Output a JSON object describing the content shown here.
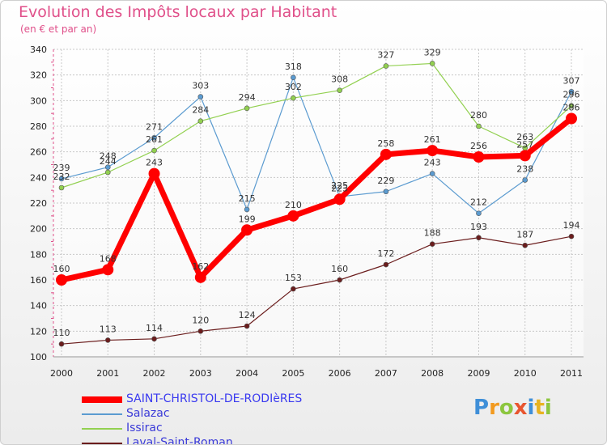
{
  "header": {
    "title": "Evolution des Impôts locaux par Habitant",
    "subtitle": "(en € et par an)"
  },
  "logo": {
    "text": "Proxiti",
    "letters": [
      "P",
      "r",
      "o",
      "x",
      "i",
      "t",
      "i"
    ],
    "colors": [
      "#3f8fd8",
      "#f29a1f",
      "#8cc63f",
      "#e8552f",
      "#3f8fd8",
      "#e8b320",
      "#8cc63f"
    ]
  },
  "chart_data": {
    "type": "line",
    "title": "Evolution des Impôts locaux par Habitant",
    "subtitle": "(en € et par an)",
    "xlabel": "",
    "ylabel": "",
    "x": [
      "2000",
      "2001",
      "2002",
      "2003",
      "2004",
      "2005",
      "2006",
      "2007",
      "2008",
      "2009",
      "2010",
      "2011"
    ],
    "ylim": [
      100,
      340
    ],
    "yticks": [
      100,
      120,
      140,
      160,
      180,
      200,
      220,
      240,
      260,
      280,
      300,
      320,
      340
    ],
    "grid": true,
    "legend_position": "bottom-left",
    "series": [
      {
        "name": "Salazac",
        "color": "#5b9bd0",
        "emphasis": false,
        "values": [
          239,
          248,
          271,
          303,
          215,
          318,
          225,
          229,
          243,
          212,
          238,
          307
        ]
      },
      {
        "name": "Issirac",
        "color": "#92d050",
        "emphasis": false,
        "values": [
          232,
          244,
          261,
          284,
          294,
          302,
          308,
          327,
          329,
          280,
          263,
          296
        ]
      },
      {
        "name": "Laval-Saint-Roman",
        "color": "#6b1d1d",
        "emphasis": false,
        "values": [
          110,
          113,
          114,
          120,
          124,
          153,
          160,
          172,
          188,
          193,
          187,
          194
        ]
      },
      {
        "name": "SAINT-CHRISTOL-DE-RODIèRES",
        "color": "#ff0000",
        "emphasis": true,
        "values": [
          160,
          168,
          243,
          162,
          199,
          210,
          223,
          258,
          261,
          256,
          257,
          286
        ]
      }
    ],
    "legend_order": [
      "SAINT-CHRISTOL-DE-RODIèRES",
      "Salazac",
      "Issirac",
      "Laval-Saint-Roman"
    ]
  }
}
